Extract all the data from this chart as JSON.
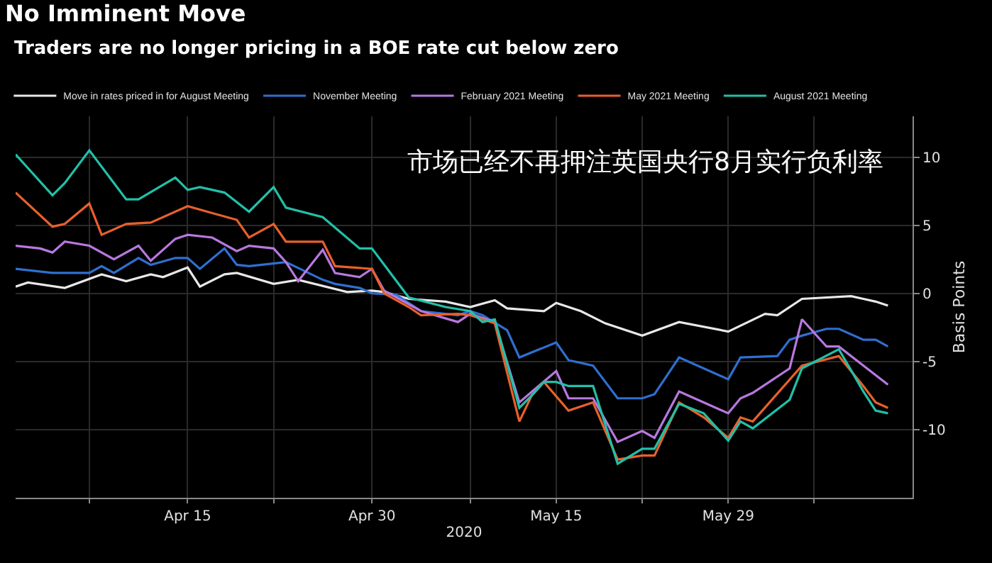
{
  "chart_data": {
    "type": "line",
    "title": "No Imminent Move",
    "subtitle": "Traders are no longer pricing in a BOE rate cut below zero",
    "xlabel": "2020",
    "ylabel": "Basis Points",
    "annotations": [
      "市场已经不再押注英国央行8月实行负利率"
    ],
    "series": [
      {
        "name": "Move in rates priced in for August Meeting",
        "color": "#e8e8e8",
        "x": [
          "2020-04-01",
          "2020-04-02",
          "2020-04-05",
          "2020-04-08",
          "2020-04-10",
          "2020-04-12",
          "2020-04-13",
          "2020-04-15",
          "2020-04-16",
          "2020-04-18",
          "2020-04-19",
          "2020-04-22",
          "2020-04-24",
          "2020-04-28",
          "2020-04-30",
          "2020-05-01",
          "2020-05-03",
          "2020-05-06",
          "2020-05-08",
          "2020-05-10",
          "2020-05-11",
          "2020-05-14",
          "2020-05-15",
          "2020-05-17",
          "2020-05-19",
          "2020-05-22",
          "2020-05-25",
          "2020-05-29",
          "2020-06-01",
          "2020-06-02",
          "2020-06-04",
          "2020-06-08",
          "2020-06-09",
          "2020-06-10",
          "2020-06-11"
        ],
        "values": [
          0.5,
          0.8,
          0.4,
          1.4,
          0.9,
          1.4,
          1.2,
          1.9,
          0.5,
          1.4,
          1.5,
          0.7,
          1.0,
          0.1,
          0.2,
          0.1,
          -0.4,
          -0.6,
          -1.0,
          -0.5,
          -1.1,
          -1.3,
          -0.7,
          -1.3,
          -2.2,
          -3.1,
          -2.1,
          -2.8,
          -1.5,
          -1.6,
          -0.4,
          -0.2,
          -0.4,
          -0.6,
          -0.9
        ]
      },
      {
        "name": "November Meeting",
        "color": "#2f6fd0",
        "x": [
          "2020-04-01",
          "2020-04-04",
          "2020-04-07",
          "2020-04-08",
          "2020-04-09",
          "2020-04-11",
          "2020-04-12",
          "2020-04-14",
          "2020-04-15",
          "2020-04-16",
          "2020-04-18",
          "2020-04-19",
          "2020-04-20",
          "2020-04-23",
          "2020-04-26",
          "2020-04-27",
          "2020-04-29",
          "2020-04-30",
          "2020-05-02",
          "2020-05-04",
          "2020-05-07",
          "2020-05-08",
          "2020-05-09",
          "2020-05-11",
          "2020-05-12",
          "2020-05-15",
          "2020-05-16",
          "2020-05-18",
          "2020-05-20",
          "2020-05-22",
          "2020-05-23",
          "2020-05-25",
          "2020-05-29",
          "2020-05-30",
          "2020-06-02",
          "2020-06-03",
          "2020-06-04",
          "2020-06-06",
          "2020-06-07",
          "2020-06-09",
          "2020-06-10",
          "2020-06-11"
        ],
        "values": [
          1.8,
          1.5,
          1.5,
          2.0,
          1.5,
          2.6,
          2.1,
          2.6,
          2.6,
          1.8,
          3.3,
          2.1,
          2.0,
          2.3,
          1.0,
          0.7,
          0.4,
          0.0,
          -0.1,
          -1.3,
          -1.6,
          -1.3,
          -1.6,
          -2.7,
          -4.7,
          -3.6,
          -4.9,
          -5.3,
          -7.7,
          -7.7,
          -7.4,
          -4.7,
          -6.3,
          -4.7,
          -4.6,
          -3.4,
          -3.1,
          -2.6,
          -2.6,
          -3.4,
          -3.4,
          -3.9
        ]
      },
      {
        "name": "February 2021 Meeting",
        "color": "#b878e0",
        "x": [
          "2020-04-01",
          "2020-04-03",
          "2020-04-04",
          "2020-04-05",
          "2020-04-07",
          "2020-04-09",
          "2020-04-11",
          "2020-04-12",
          "2020-04-14",
          "2020-04-15",
          "2020-04-17",
          "2020-04-19",
          "2020-04-20",
          "2020-04-22",
          "2020-04-23",
          "2020-04-24",
          "2020-04-26",
          "2020-04-27",
          "2020-04-29",
          "2020-04-30",
          "2020-05-01",
          "2020-05-04",
          "2020-05-07",
          "2020-05-08",
          "2020-05-10",
          "2020-05-12",
          "2020-05-15",
          "2020-05-16",
          "2020-05-18",
          "2020-05-20",
          "2020-05-22",
          "2020-05-23",
          "2020-05-25",
          "2020-05-27",
          "2020-05-29",
          "2020-05-30",
          "2020-05-31",
          "2020-06-03",
          "2020-06-04",
          "2020-06-06",
          "2020-06-07",
          "2020-06-11"
        ],
        "values": [
          3.5,
          3.3,
          3.0,
          3.8,
          3.5,
          2.5,
          3.5,
          2.4,
          4.0,
          4.3,
          4.1,
          3.1,
          3.5,
          3.3,
          2.3,
          0.9,
          3.2,
          1.5,
          1.2,
          1.8,
          0.2,
          -1.3,
          -2.1,
          -1.5,
          -2.1,
          -8.0,
          -5.7,
          -7.7,
          -7.7,
          -10.9,
          -10.1,
          -10.6,
          -7.2,
          -8.0,
          -8.8,
          -7.7,
          -7.3,
          -5.5,
          -1.9,
          -3.9,
          -3.9,
          -6.7
        ]
      },
      {
        "name": "May 2021 Meeting",
        "color": "#e8602c",
        "x": [
          "2020-04-01",
          "2020-04-04",
          "2020-04-05",
          "2020-04-07",
          "2020-04-08",
          "2020-04-10",
          "2020-04-12",
          "2020-04-15",
          "2020-04-17",
          "2020-04-19",
          "2020-04-20",
          "2020-04-22",
          "2020-04-23",
          "2020-04-26",
          "2020-04-27",
          "2020-04-30",
          "2020-05-01",
          "2020-05-03",
          "2020-05-04",
          "2020-05-07",
          "2020-05-08",
          "2020-05-10",
          "2020-05-12",
          "2020-05-13",
          "2020-05-14",
          "2020-05-16",
          "2020-05-18",
          "2020-05-20",
          "2020-05-22",
          "2020-05-23",
          "2020-05-25",
          "2020-05-27",
          "2020-05-29",
          "2020-05-30",
          "2020-05-31",
          "2020-06-04",
          "2020-06-07",
          "2020-06-09",
          "2020-06-10",
          "2020-06-11"
        ],
        "values": [
          7.4,
          4.9,
          5.1,
          6.6,
          4.3,
          5.1,
          5.2,
          6.4,
          5.9,
          5.4,
          4.1,
          5.1,
          3.8,
          3.8,
          2.0,
          1.8,
          0.0,
          -1.0,
          -1.6,
          -1.5,
          -1.6,
          -2.2,
          -9.4,
          -7.5,
          -6.5,
          -8.6,
          -8.0,
          -12.2,
          -11.9,
          -11.9,
          -8.0,
          -9.1,
          -10.6,
          -9.1,
          -9.4,
          -5.3,
          -4.6,
          -6.8,
          -8.0,
          -8.4
        ]
      },
      {
        "name": "August 2021 Meeting",
        "color": "#22c0a8",
        "x": [
          "2020-04-01",
          "2020-04-02",
          "2020-04-04",
          "2020-04-05",
          "2020-04-07",
          "2020-04-10",
          "2020-04-11",
          "2020-04-14",
          "2020-04-15",
          "2020-04-16",
          "2020-04-18",
          "2020-04-20",
          "2020-04-22",
          "2020-04-23",
          "2020-04-26",
          "2020-04-29",
          "2020-04-30",
          "2020-05-03",
          "2020-05-06",
          "2020-05-08",
          "2020-05-09",
          "2020-05-10",
          "2020-05-12",
          "2020-05-13",
          "2020-05-14",
          "2020-05-15",
          "2020-05-16",
          "2020-05-18",
          "2020-05-20",
          "2020-05-22",
          "2020-05-23",
          "2020-05-25",
          "2020-05-27",
          "2020-05-29",
          "2020-05-30",
          "2020-05-31",
          "2020-06-03",
          "2020-06-04",
          "2020-06-07",
          "2020-06-09",
          "2020-06-10",
          "2020-06-11"
        ],
        "values": [
          10.2,
          9.2,
          7.2,
          8.1,
          10.5,
          6.9,
          6.9,
          8.5,
          7.6,
          7.8,
          7.4,
          6.0,
          7.8,
          6.3,
          5.6,
          3.3,
          3.3,
          -0.3,
          -1.0,
          -1.3,
          -2.1,
          -1.9,
          -8.4,
          -7.5,
          -6.5,
          -6.5,
          -6.8,
          -6.8,
          -12.5,
          -11.4,
          -11.4,
          -8.1,
          -8.8,
          -10.8,
          -9.4,
          -9.9,
          -7.8,
          -5.5,
          -4.1,
          -7.2,
          -8.6,
          -8.8
        ]
      }
    ],
    "xlim": [
      "2020-04-01",
      "2020-06-13"
    ],
    "xticks": [
      {
        "value": "2020-04-07",
        "label": null
      },
      {
        "value": "2020-04-15",
        "label": "Apr 15"
      },
      {
        "value": "2020-04-22",
        "label": null
      },
      {
        "value": "2020-04-30",
        "label": "Apr 30"
      },
      {
        "value": "2020-05-08",
        "label": null
      },
      {
        "value": "2020-05-15",
        "label": "May 15"
      },
      {
        "value": "2020-05-22",
        "label": null
      },
      {
        "value": "2020-05-29",
        "label": "May 29"
      },
      {
        "value": "2020-06-05",
        "label": null
      }
    ],
    "ylim": [
      -15,
      13
    ],
    "yticks": [
      -10,
      -5,
      0,
      5,
      10
    ],
    "grid": true,
    "legend": "top",
    "line_style": "solid"
  }
}
